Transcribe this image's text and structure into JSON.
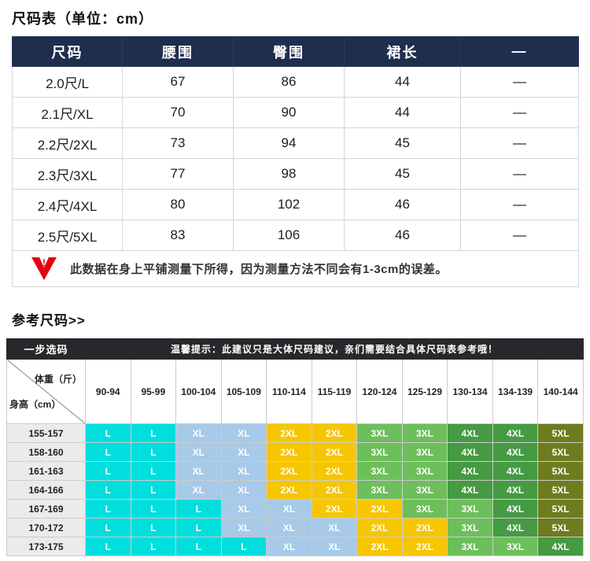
{
  "page": {
    "title1": "尺码表（单位：cm）",
    "title2": "参考尺码>>"
  },
  "size_table": {
    "headers": [
      "尺码",
      "腰围",
      "臀围",
      "裙长",
      "—"
    ],
    "rows": [
      {
        "label": "2.0尺/L",
        "values": [
          "67",
          "86",
          "44",
          "—"
        ]
      },
      {
        "label": "2.1尺/XL",
        "values": [
          "70",
          "90",
          "44",
          "—"
        ]
      },
      {
        "label": "2.2尺/2XL",
        "values": [
          "73",
          "94",
          "45",
          "—"
        ]
      },
      {
        "label": "2.3尺/3XL",
        "values": [
          "77",
          "98",
          "45",
          "—"
        ]
      },
      {
        "label": "2.4尺/4XL",
        "values": [
          "80",
          "102",
          "46",
          "—"
        ]
      },
      {
        "label": "2.5尺/5XL",
        "values": [
          "83",
          "106",
          "46",
          "—"
        ]
      }
    ],
    "note": "此数据在身上平铺测量下所得，因为测量方法不同会有1-3cm的误差。"
  },
  "ref_table": {
    "corner_label": "一步选码",
    "tip": "温馨提示：此建议只是大体尺码建议，亲们需要结合具体尺码表参考哦！",
    "weight_label": "体重（斤）",
    "height_label": "身高（cm）",
    "weight_cols": [
      "90-94",
      "95-99",
      "100-104",
      "105-109",
      "110-114",
      "115-119",
      "120-124",
      "125-129",
      "130-134",
      "134-139",
      "140-144"
    ],
    "rows": [
      {
        "height": "155-157",
        "sizes": [
          "L",
          "L",
          "XL",
          "XL",
          "2XL",
          "2XL",
          "3XL",
          "3XL",
          "4XL",
          "4XL",
          "5XL"
        ]
      },
      {
        "height": "158-160",
        "sizes": [
          "L",
          "L",
          "XL",
          "XL",
          "2XL",
          "2XL",
          "3XL",
          "3XL",
          "4XL",
          "4XL",
          "5XL"
        ]
      },
      {
        "height": "161-163",
        "sizes": [
          "L",
          "L",
          "XL",
          "XL",
          "2XL",
          "2XL",
          "3XL",
          "3XL",
          "4XL",
          "4XL",
          "5XL"
        ]
      },
      {
        "height": "164-166",
        "sizes": [
          "L",
          "L",
          "XL",
          "XL",
          "2XL",
          "2XL",
          "3XL",
          "3XL",
          "4XL",
          "4XL",
          "5XL"
        ]
      },
      {
        "height": "167-169",
        "sizes": [
          "L",
          "L",
          "L",
          "XL",
          "XL",
          "2XL",
          "2XL",
          "3XL",
          "3XL",
          "4XL",
          "5XL"
        ]
      },
      {
        "height": "170-172",
        "sizes": [
          "L",
          "L",
          "L",
          "XL",
          "XL",
          "XL",
          "2XL",
          "2XL",
          "3XL",
          "4XL",
          "5XL"
        ]
      },
      {
        "height": "173-175",
        "sizes": [
          "L",
          "L",
          "L",
          "L",
          "XL",
          "XL",
          "2XL",
          "2XL",
          "3XL",
          "3XL",
          "4XL"
        ]
      }
    ]
  },
  "colors": {
    "table_header_bg": "#202e4e",
    "tip_bar_bg": "#28282c",
    "warning_red": "#e60012",
    "sizes": {
      "L": "#00dede",
      "XL": "#a6cae8",
      "2XL": "#f6c600",
      "3XL": "#6dbf5b",
      "4XL": "#459a43",
      "5XL": "#6f7c1d"
    }
  }
}
